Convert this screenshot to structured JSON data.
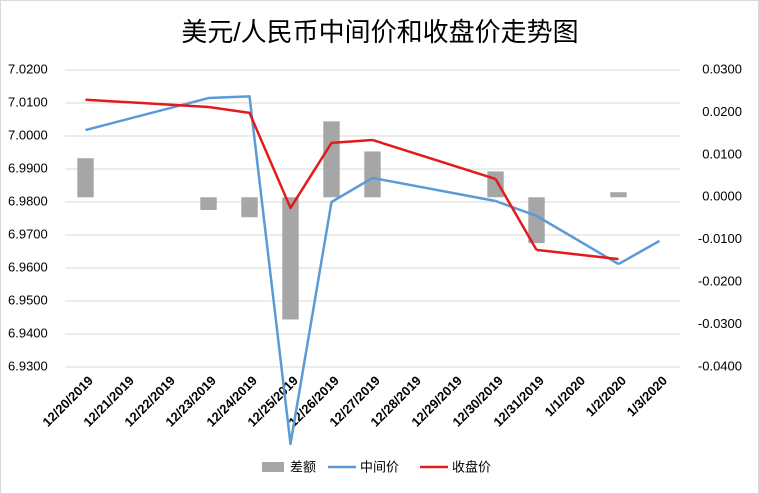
{
  "chart_data": {
    "type": "combo",
    "title": "美元/人民币中间价和收盘价走势图",
    "categories": [
      "12/20/2019",
      "12/21/2019",
      "12/22/2019",
      "12/23/2019",
      "12/24/2019",
      "12/25/2019",
      "12/26/2019",
      "12/27/2019",
      "12/28/2019",
      "12/29/2019",
      "12/30/2019",
      "12/31/2019",
      "1/1/2020",
      "1/2/2020",
      "1/3/2020"
    ],
    "series": [
      {
        "name": "差额",
        "type": "bar",
        "axis": "y2",
        "color": "#a6a6a6",
        "values": [
          0.0092,
          null,
          null,
          -0.003,
          -0.0047,
          -0.0288,
          0.0179,
          0.0108,
          null,
          null,
          0.0061,
          -0.0108,
          null,
          0.0012,
          null
        ]
      },
      {
        "name": "中间价",
        "type": "line",
        "color": "#5b9bd5",
        "values": [
          7.0018,
          null,
          null,
          7.0115,
          7.012,
          6.9067,
          6.98,
          6.9873,
          null,
          null,
          6.9803,
          6.9758,
          null,
          6.9612,
          6.9682
        ]
      },
      {
        "name": "收盘价",
        "type": "line",
        "color": "#e31a1c",
        "values": [
          7.011,
          null,
          null,
          7.0088,
          7.007,
          6.9782,
          6.9979,
          6.9988,
          null,
          null,
          6.987,
          6.9655,
          null,
          6.9627,
          null
        ]
      }
    ],
    "ylim": [
      6.93,
      7.02
    ],
    "yticks": [
      {
        "value": 6.93,
        "label": "6.9300"
      },
      {
        "value": 6.94,
        "label": "6.9400"
      },
      {
        "value": 6.95,
        "label": "6.9500"
      },
      {
        "value": 6.96,
        "label": "6.9600"
      },
      {
        "value": 6.97,
        "label": "6.9700"
      },
      {
        "value": 6.98,
        "label": "6.9800"
      },
      {
        "value": 6.99,
        "label": "6.9900"
      },
      {
        "value": 7.0,
        "label": "7.0000"
      },
      {
        "value": 7.01,
        "label": "7.0100"
      },
      {
        "value": 7.02,
        "label": "7.0200"
      }
    ],
    "y2lim": [
      -0.04,
      0.03
    ],
    "y2ticks": [
      {
        "value": -0.04,
        "label": "-0.0400"
      },
      {
        "value": -0.03,
        "label": "-0.0300"
      },
      {
        "value": -0.02,
        "label": "-0.0200"
      },
      {
        "value": -0.01,
        "label": "-0.0100"
      },
      {
        "value": 0,
        "label": "0.0000"
      },
      {
        "value": 0.01,
        "label": "0.0100"
      },
      {
        "value": 0.02,
        "label": "0.0200"
      },
      {
        "value": 0.03,
        "label": "0.0300"
      }
    ],
    "grid": true,
    "legend": "bottom"
  }
}
